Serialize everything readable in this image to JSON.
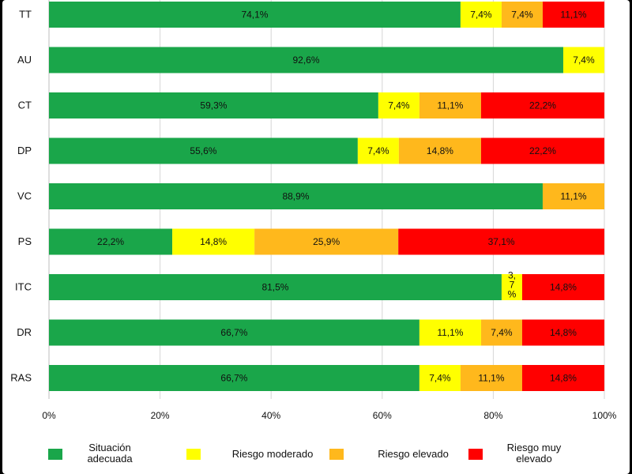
{
  "chart_data": {
    "type": "bar",
    "orientation": "horizontal",
    "stacked": true,
    "categories": [
      "TT",
      "AU",
      "CT",
      "DP",
      "VC",
      "PS",
      "ITC",
      "DR",
      "RAS"
    ],
    "series": [
      {
        "name": "Situación adecuada",
        "color": "#1aa64a",
        "values": [
          74.1,
          92.6,
          59.3,
          55.6,
          88.9,
          22.2,
          81.5,
          66.7,
          66.7
        ],
        "labels": [
          "74,1%",
          "92,6%",
          "59,3%",
          "55,6%",
          "88,9%",
          "22,2%",
          "81,5%",
          "66,7%",
          "66,7%"
        ]
      },
      {
        "name": "Riesgo moderado",
        "color": "#ffff00",
        "values": [
          7.4,
          7.4,
          7.4,
          7.4,
          0,
          14.8,
          3.7,
          11.1,
          7.4
        ],
        "labels": [
          "7,4%",
          "7,4%",
          "7,4%",
          "7,4%",
          "",
          "14,8%",
          "3,7%",
          "11,1%",
          "7,4%"
        ]
      },
      {
        "name": "Riesgo elevado",
        "color": "#ffb81c",
        "values": [
          7.4,
          0,
          11.1,
          14.8,
          11.1,
          25.9,
          0,
          7.4,
          11.1
        ],
        "labels": [
          "7,4%",
          "",
          "11,1%",
          "14,8%",
          "11,1%",
          "25,9%",
          "",
          "7,4%",
          "11,1%"
        ]
      },
      {
        "name": "Riesgo muy elevado",
        "color": "#ff0000",
        "values": [
          11.1,
          0,
          22.2,
          22.2,
          0,
          37.1,
          14.8,
          14.8,
          14.8
        ],
        "labels": [
          "11,1%",
          "",
          "22,2%",
          "22,2%",
          "",
          "37,1%",
          "14,8%",
          "14,8%",
          "14,8%"
        ]
      }
    ],
    "xlim": [
      0,
      100
    ],
    "xticks": [
      "0%",
      "20%",
      "40%",
      "60%",
      "80%",
      "100%"
    ],
    "legend_labels": [
      [
        "Situación",
        "adecuada"
      ],
      [
        "Riesgo moderado"
      ],
      [
        "Riesgo elevado"
      ],
      [
        "Riesgo muy",
        "elevado"
      ]
    ],
    "grid": true,
    "legend_position": "bottom"
  }
}
